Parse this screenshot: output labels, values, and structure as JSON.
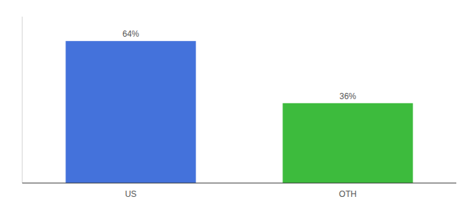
{
  "chart_data": {
    "type": "bar",
    "categories": [
      "US",
      "OTH"
    ],
    "values": [
      64,
      36
    ],
    "value_labels": [
      "64%",
      "36%"
    ],
    "colors": [
      "#4472db",
      "#3dbb3d"
    ],
    "ylim": [
      0,
      75
    ],
    "grid": false,
    "data_labels": true,
    "tick_labels": "x"
  }
}
